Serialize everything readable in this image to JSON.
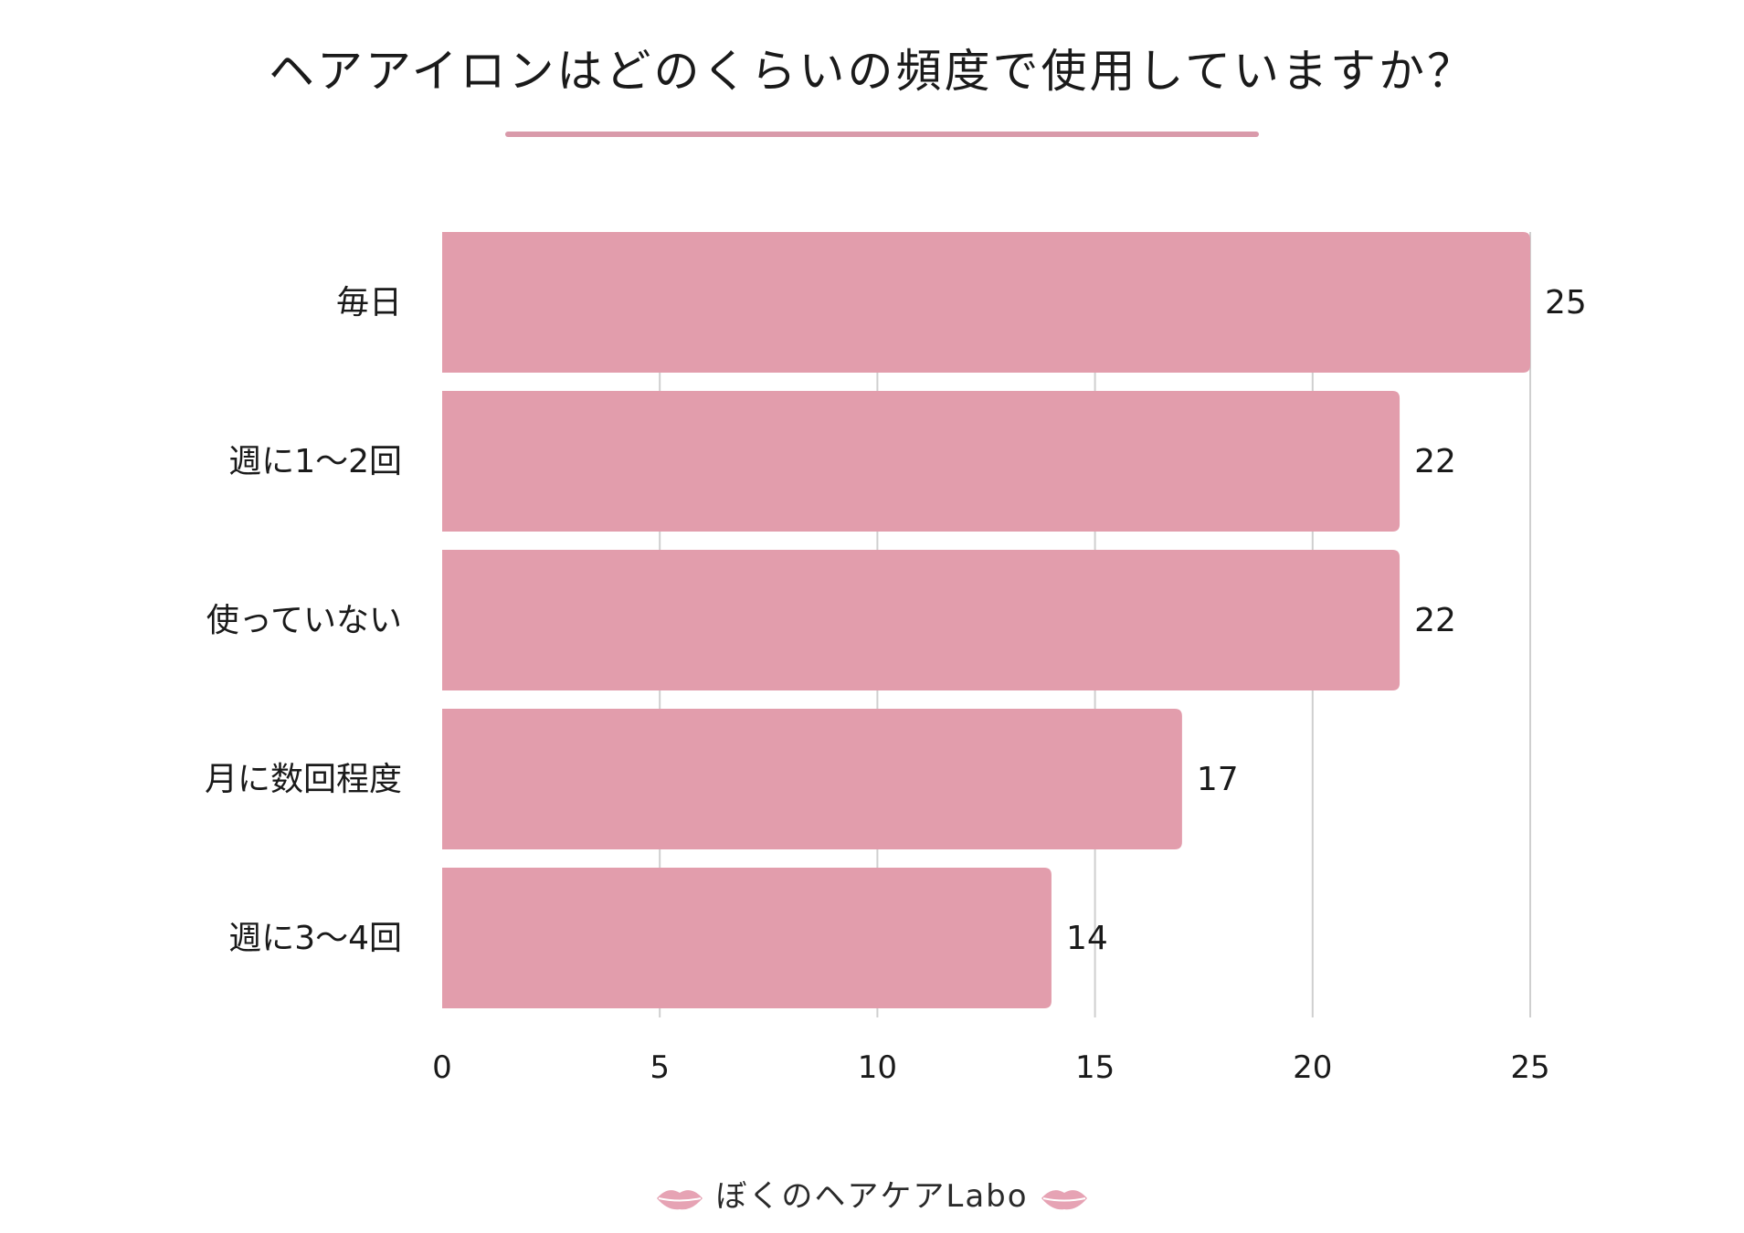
{
  "title": "ヘアアイロンはどのくらいの頻度で使用していますか？",
  "brand": "ぼくのヘアケアLabo",
  "colors": {
    "bar": "#e29dac",
    "underline": "#d99aaa",
    "grid": "#cfcfcf",
    "text": "#1a1a1a",
    "lips": "#e6a3b4"
  },
  "icons": [
    "lips-icon"
  ],
  "chart_data": {
    "type": "bar",
    "orientation": "horizontal",
    "categories": [
      "毎日",
      "週に1～2回",
      "使っていない",
      "月に数回程度",
      "週に3～4回"
    ],
    "values": [
      25,
      22,
      22,
      17,
      14
    ],
    "xlim": [
      0,
      25
    ],
    "xticks": [
      "0",
      "5",
      "10",
      "15",
      "20",
      "25"
    ],
    "grid": true,
    "data_labels": true
  }
}
